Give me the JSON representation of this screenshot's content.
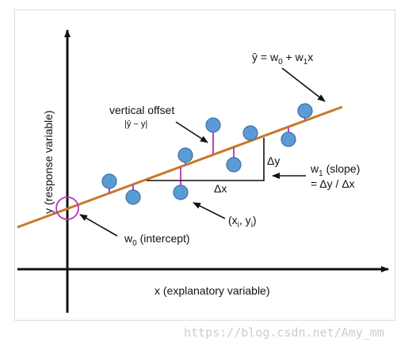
{
  "equation": {
    "parts": [
      "ŷ = w",
      "0",
      " + w",
      "1",
      "x"
    ]
  },
  "vertical_offset": {
    "label": "vertical offset",
    "formula": "|ŷ − y|"
  },
  "delta_y": "Δy",
  "delta_x": "Δx",
  "slope": {
    "parts": [
      "w",
      "1",
      " (slope)"
    ],
    "formula": "= Δy / Δx"
  },
  "point": {
    "parts": [
      "(x",
      "i",
      ", y",
      "i",
      ")"
    ]
  },
  "intercept": {
    "parts": [
      "w",
      "0",
      " (intercept)"
    ]
  },
  "x_axis_label": "x (explanatory variable)",
  "y_axis_label": "y (response variable)",
  "watermark": "https://blog.csdn.net/Amy_mm"
}
